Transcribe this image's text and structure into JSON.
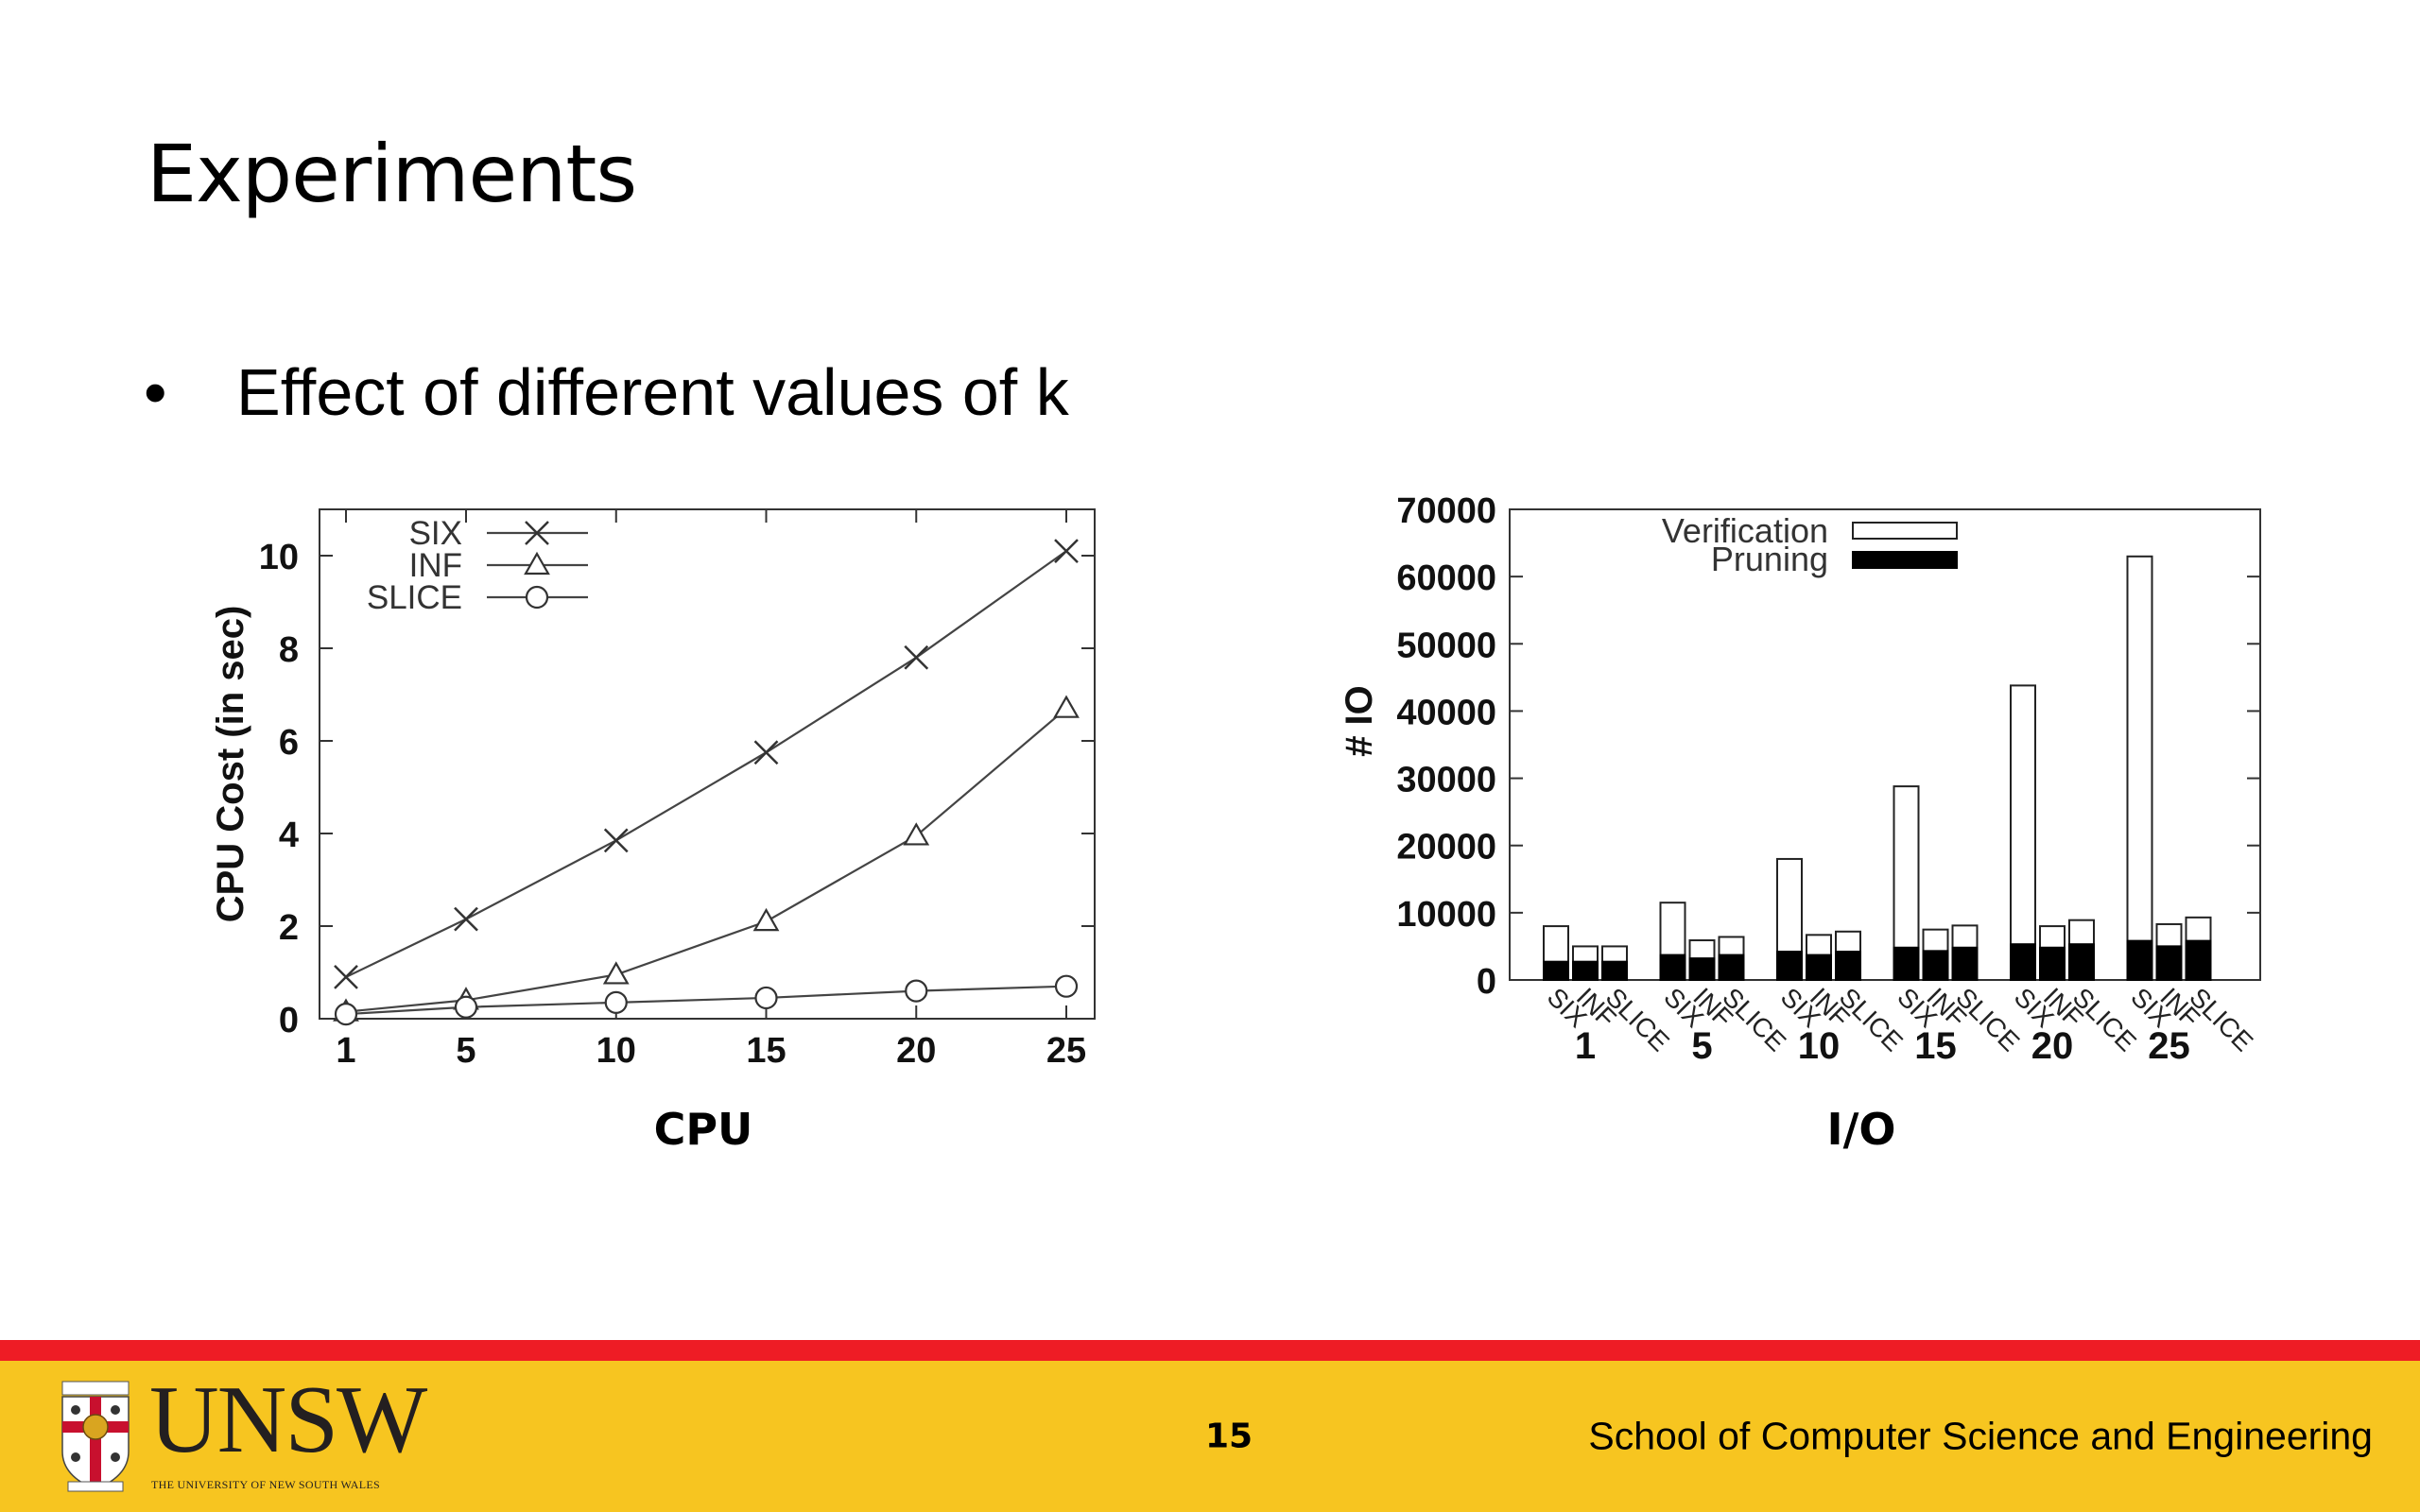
{
  "slide": {
    "title": "Experiments",
    "bullet": "Effect of different values of k"
  },
  "chart_data": [
    {
      "type": "line",
      "caption": "CPU",
      "ylabel": "CPU Cost (in sec)",
      "x": [
        1,
        5,
        10,
        15,
        20,
        25
      ],
      "xticks": [
        "1",
        "5",
        "10",
        "15",
        "20",
        "25"
      ],
      "ylim": [
        0,
        11
      ],
      "yticks": [
        0,
        2,
        4,
        6,
        8,
        10
      ],
      "legend_position": "top-left",
      "grid": false,
      "series": [
        {
          "name": "SIX",
          "marker": "cross",
          "values": [
            0.9,
            2.15,
            3.85,
            5.75,
            7.8,
            10.1
          ]
        },
        {
          "name": "INF",
          "marker": "triangle",
          "values": [
            0.15,
            0.4,
            0.95,
            2.1,
            3.95,
            6.7
          ]
        },
        {
          "name": "SLICE",
          "marker": "circle",
          "values": [
            0.1,
            0.25,
            0.35,
            0.45,
            0.6,
            0.7
          ]
        }
      ]
    },
    {
      "type": "bar",
      "stacked": true,
      "caption": "I/O",
      "ylabel": "# IO",
      "groups": [
        "1",
        "5",
        "10",
        "15",
        "20",
        "25"
      ],
      "categories": [
        "SIX",
        "INF",
        "SLICE"
      ],
      "ylim": [
        0,
        70000
      ],
      "yticks": [
        "0",
        "10000",
        "20000",
        "30000",
        "40000",
        "50000",
        "60000",
        "70000"
      ],
      "legend_position": "top-center",
      "grid": false,
      "colors": {
        "Pruning": "#000000",
        "Verification": "#ffffff"
      },
      "series": [
        {
          "name": "Pruning",
          "values": [
            [
              2700,
              2700,
              2700
            ],
            [
              3700,
              3200,
              3700
            ],
            [
              4200,
              3700,
              4200
            ],
            [
              4800,
              4300,
              4800
            ],
            [
              5300,
              4800,
              5300
            ],
            [
              5800,
              5000,
              5800
            ]
          ]
        },
        {
          "name": "Verification",
          "values": [
            [
              5300,
              2300,
              2300
            ],
            [
              7800,
              2700,
              2700
            ],
            [
              13800,
              3000,
              3000
            ],
            [
              24000,
              3200,
              3300
            ],
            [
              38500,
              3200,
              3600
            ],
            [
              57200,
              3300,
              3500
            ]
          ]
        }
      ]
    }
  ],
  "footer": {
    "university": "UNSW",
    "university_full": "THE UNIVERSITY OF NEW SOUTH WALES",
    "page_number": "15",
    "school": "School of Computer Science and Engineering",
    "colors": {
      "bar": "#f7c520",
      "stripe": "#ee1c25"
    }
  }
}
